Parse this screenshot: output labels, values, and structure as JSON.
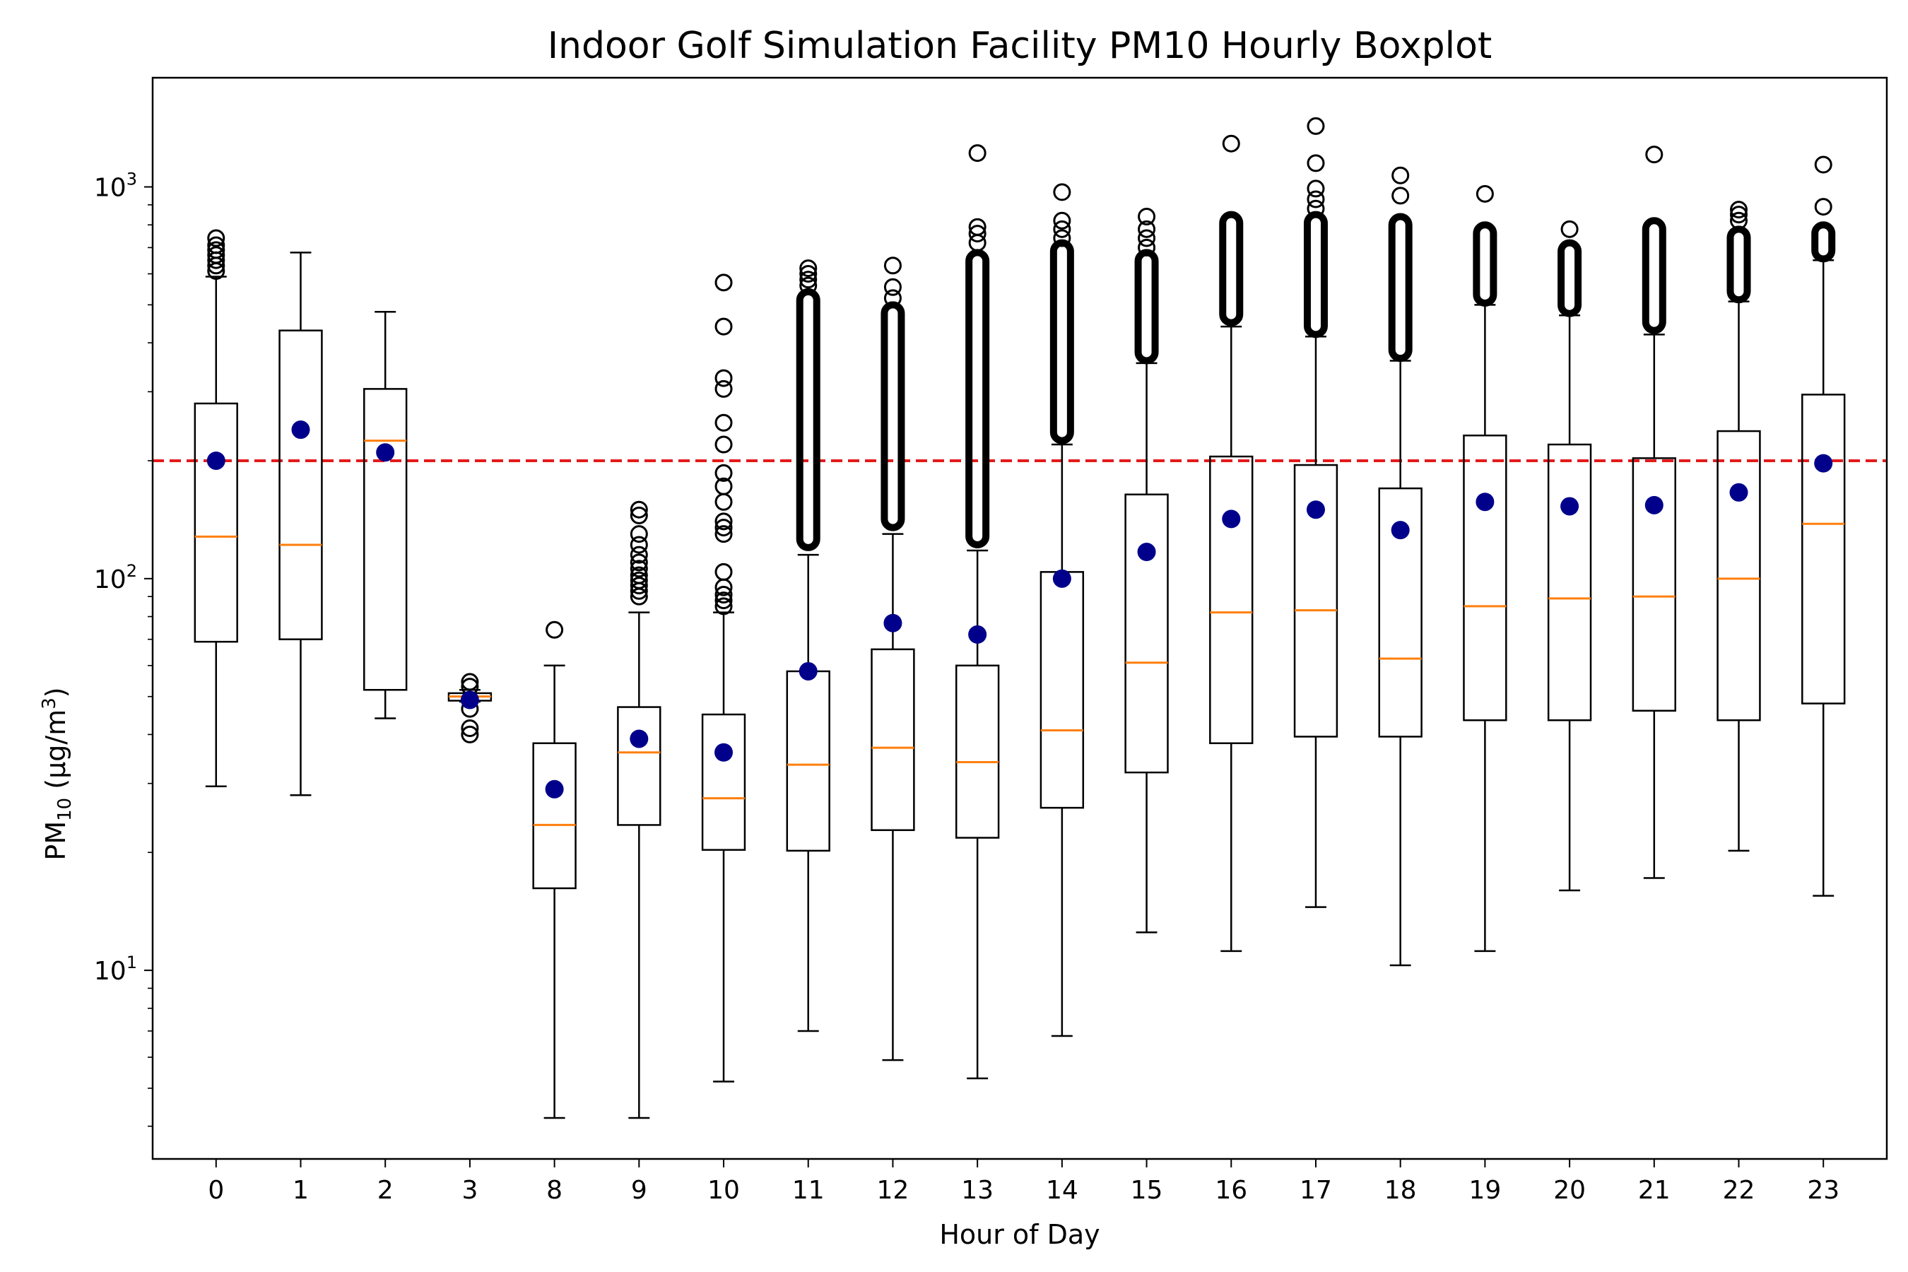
{
  "chart_data": {
    "type": "boxplot",
    "title": "Indoor Golf Simulation Facility PM10 Hourly Boxplot",
    "xlabel": "Hour of Day",
    "ylabel": {
      "prefix": "PM",
      "sub": "10",
      "unit_prefix": " (μg/m",
      "unit_sup": "3",
      "unit_suffix": ")"
    },
    "yscale": "log",
    "ylim": [
      3.3,
      1900
    ],
    "yticks": [
      {
        "value": 10,
        "base": "10",
        "exp": "1"
      },
      {
        "value": 100,
        "base": "10",
        "exp": "2"
      },
      {
        "value": 1000,
        "base": "10",
        "exp": "3"
      }
    ],
    "reference_line": {
      "value": 200,
      "color": "#e41a1c",
      "style": "dashed"
    },
    "colors": {
      "box": "#000000",
      "median": "#ff7f0e",
      "mean": "#00008b",
      "flier": "#000000"
    },
    "categories": [
      "0",
      "1",
      "2",
      "3",
      "8",
      "9",
      "10",
      "11",
      "12",
      "13",
      "14",
      "15",
      "16",
      "17",
      "18",
      "19",
      "20",
      "21",
      "22",
      "23"
    ],
    "boxes": [
      {
        "hour": "0",
        "whislo": 29.5,
        "q1": 69,
        "med": 128,
        "q3": 280,
        "whishi": 590,
        "mean": 200,
        "fliers": [
          610,
          630,
          650,
          670,
          690,
          710,
          740
        ],
        "flier_dense": []
      },
      {
        "hour": "1",
        "whislo": 28,
        "q1": 70,
        "med": 122,
        "q3": 430,
        "whishi": 680,
        "mean": 240,
        "fliers": [],
        "flier_dense": []
      },
      {
        "hour": "2",
        "whislo": 44,
        "q1": 52,
        "med": 225,
        "q3": 305,
        "whishi": 480,
        "mean": 210,
        "fliers": [],
        "flier_dense": []
      },
      {
        "hour": "3",
        "whislo": 48.5,
        "q1": 48.8,
        "med": 50,
        "q3": 51,
        "whishi": 52,
        "mean": 49,
        "fliers": [
          40,
          41.5,
          46.5,
          53,
          54.5
        ],
        "flier_dense": []
      },
      {
        "hour": "8",
        "whislo": 4.2,
        "q1": 16.2,
        "med": 23.5,
        "q3": 38,
        "whishi": 60,
        "mean": 29,
        "fliers": [
          74
        ],
        "flier_dense": []
      },
      {
        "hour": "9",
        "whislo": 4.2,
        "q1": 23.5,
        "med": 36,
        "q3": 47,
        "whishi": 82,
        "mean": 39,
        "fliers": [
          90,
          93,
          96,
          99,
          102,
          106,
          110,
          115,
          122,
          130,
          145,
          150
        ],
        "flier_dense": []
      },
      {
        "hour": "10",
        "whislo": 5.2,
        "q1": 20.3,
        "med": 27.5,
        "q3": 45,
        "whishi": 82,
        "mean": 36,
        "fliers": [
          85,
          88,
          91,
          95,
          104,
          130,
          135,
          140,
          157,
          172,
          186,
          220,
          250,
          305,
          325,
          440,
          570
        ],
        "flier_dense": []
      },
      {
        "hour": "11",
        "whislo": 7,
        "q1": 20.2,
        "med": 33.5,
        "q3": 58,
        "whishi": 115,
        "mean": 58,
        "fliers": [
          560,
          580,
          600,
          620
        ],
        "flier_dense": [
          120,
          540
        ]
      },
      {
        "hour": "12",
        "whislo": 5.9,
        "q1": 22.8,
        "med": 37,
        "q3": 66,
        "whishi": 130,
        "mean": 77,
        "fliers": [
          520,
          555,
          630
        ],
        "flier_dense": [
          135,
          500
        ]
      },
      {
        "hour": "13",
        "whislo": 5.3,
        "q1": 21.8,
        "med": 34,
        "q3": 60,
        "whishi": 118,
        "mean": 72,
        "fliers": [
          720,
          760,
          790,
          1220
        ],
        "flier_dense": [
          122,
          680
        ]
      },
      {
        "hour": "14",
        "whislo": 6.8,
        "q1": 26,
        "med": 41,
        "q3": 104,
        "whishi": 220,
        "mean": 100,
        "fliers": [
          740,
          780,
          820,
          970
        ],
        "flier_dense": [
          225,
          720
        ]
      },
      {
        "hour": "15",
        "whislo": 12.5,
        "q1": 32,
        "med": 61,
        "q3": 164,
        "whishi": 355,
        "mean": 117,
        "fliers": [
          700,
          740,
          780,
          840
        ],
        "flier_dense": [
          360,
          680
        ]
      },
      {
        "hour": "16",
        "whislo": 11.2,
        "q1": 38,
        "med": 82,
        "q3": 205,
        "whishi": 440,
        "mean": 142,
        "fliers": [
          1290
        ],
        "flier_dense": [
          450,
          850
        ]
      },
      {
        "hour": "17",
        "whislo": 14.5,
        "q1": 39.5,
        "med": 83,
        "q3": 195,
        "whishi": 415,
        "mean": 150,
        "fliers": [
          880,
          930,
          990,
          1150,
          1430
        ],
        "flier_dense": [
          420,
          850
        ]
      },
      {
        "hour": "18",
        "whislo": 10.3,
        "q1": 39.5,
        "med": 62.5,
        "q3": 170,
        "whishi": 360,
        "mean": 133,
        "fliers": [
          950,
          1070
        ],
        "flier_dense": [
          365,
          840
        ]
      },
      {
        "hour": "19",
        "whislo": 11.2,
        "q1": 43.5,
        "med": 85,
        "q3": 232,
        "whishi": 500,
        "mean": 157,
        "fliers": [
          960
        ],
        "flier_dense": [
          505,
          800
        ]
      },
      {
        "hour": "20",
        "whislo": 16,
        "q1": 43.5,
        "med": 89,
        "q3": 220,
        "whishi": 470,
        "mean": 153,
        "fliers": [
          780
        ],
        "flier_dense": [
          475,
          720
        ]
      },
      {
        "hour": "21",
        "whislo": 17.2,
        "q1": 46,
        "med": 90,
        "q3": 203,
        "whishi": 420,
        "mean": 154,
        "fliers": [
          1210
        ],
        "flier_dense": [
          430,
          820
        ]
      },
      {
        "hour": "22",
        "whislo": 20.2,
        "q1": 43.5,
        "med": 100,
        "q3": 238,
        "whishi": 510,
        "mean": 166,
        "fliers": [
          820,
          850,
          875
        ],
        "flier_dense": [
          515,
          780
        ]
      },
      {
        "hour": "23",
        "whislo": 15.5,
        "q1": 48,
        "med": 138,
        "q3": 295,
        "whishi": 650,
        "mean": 197,
        "fliers": [
          890,
          1140
        ],
        "flier_dense": [
          655,
          800
        ]
      }
    ]
  }
}
